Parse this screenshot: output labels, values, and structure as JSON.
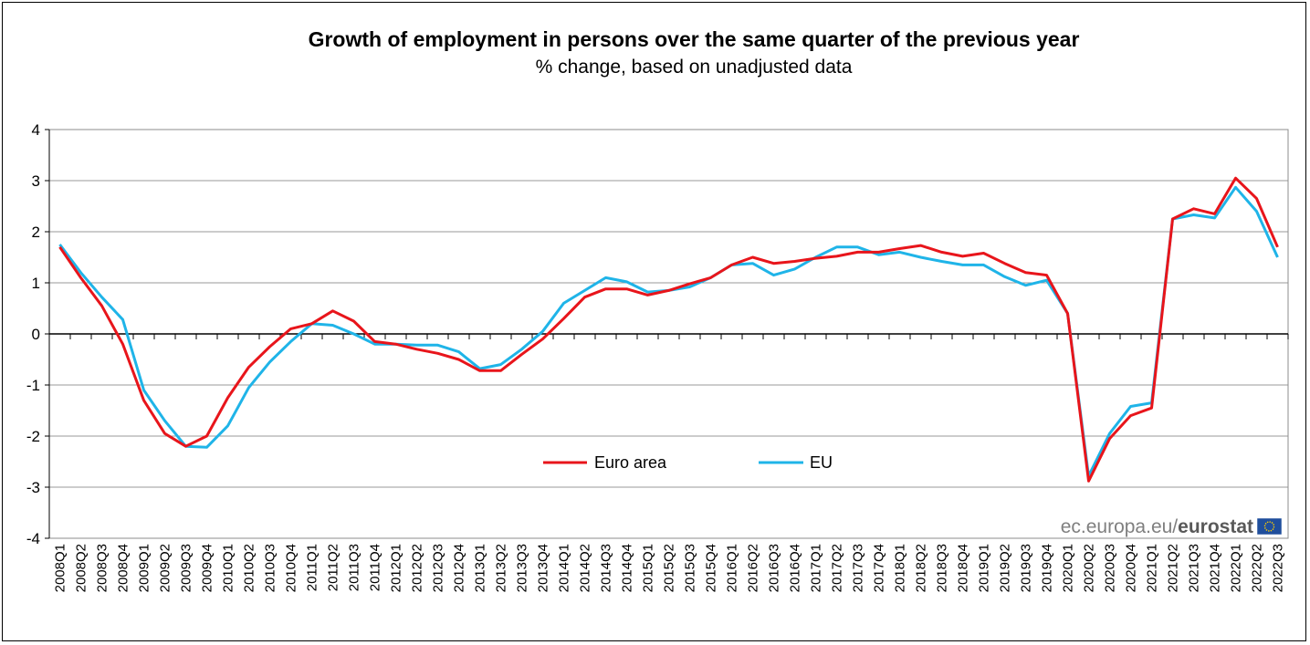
{
  "chart_data": {
    "type": "line",
    "title": "Growth of employment in persons  over the same quarter of the previous year",
    "subtitle": "% change, based on unadjusted data",
    "xlabel": "",
    "ylabel": "",
    "ylim": [
      -4,
      4
    ],
    "yticks": [
      "4",
      "3",
      "2",
      "1",
      "0",
      "-1",
      "-2",
      "-3",
      "-4"
    ],
    "categories": [
      "2008Q1",
      "2008Q2",
      "2008Q3",
      "2008Q4",
      "2009Q1",
      "2009Q2",
      "2009Q3",
      "2009Q4",
      "2010Q1",
      "2010Q2",
      "2010Q3",
      "2010Q4",
      "2011Q1",
      "2011Q2",
      "2011Q3",
      "2011Q4",
      "2012Q1",
      "2012Q2",
      "2012Q3",
      "2012Q4",
      "2013Q1",
      "2013Q2",
      "2013Q3",
      "2013Q4",
      "2014Q1",
      "2014Q2",
      "2014Q3",
      "2014Q4",
      "2015Q1",
      "2015Q2",
      "2015Q3",
      "2015Q4",
      "2016Q1",
      "2016Q2",
      "2016Q3",
      "2016Q4",
      "2017Q1",
      "2017Q2",
      "2017Q3",
      "2017Q4",
      "2018Q1",
      "2018Q2",
      "2018Q3",
      "2018Q4",
      "2019Q1",
      "2019Q2",
      "2019Q3",
      "2019Q4",
      "2020Q1",
      "2020Q2",
      "2020Q3",
      "2020Q4",
      "2021Q1",
      "2021Q2",
      "2021Q3",
      "2021Q4",
      "2022Q1",
      "2022Q2",
      "2022Q3"
    ],
    "series": [
      {
        "name": "Euro area",
        "color": "#e8151b",
        "values": [
          1.7,
          1.1,
          0.55,
          -0.2,
          -1.3,
          -1.95,
          -2.2,
          -2.0,
          -1.25,
          -0.65,
          -0.25,
          0.1,
          0.2,
          0.45,
          0.25,
          -0.15,
          -0.2,
          -0.3,
          -0.38,
          -0.5,
          -0.72,
          -0.72,
          -0.4,
          -0.1,
          0.3,
          0.72,
          0.88,
          0.88,
          0.76,
          0.85,
          0.98,
          1.1,
          1.35,
          1.5,
          1.38,
          1.42,
          1.48,
          1.52,
          1.6,
          1.6,
          1.67,
          1.73,
          1.6,
          1.52,
          1.58,
          1.38,
          1.2,
          1.15,
          0.4,
          -2.88,
          -2.05,
          -1.6,
          -1.45,
          2.25,
          2.45,
          2.35,
          3.05,
          2.65,
          1.7
        ]
      },
      {
        "name": "EU",
        "color": "#1fb4e8",
        "values": [
          1.75,
          1.2,
          0.72,
          0.28,
          -1.1,
          -1.7,
          -2.2,
          -2.22,
          -1.8,
          -1.05,
          -0.55,
          -0.15,
          0.2,
          0.17,
          0.0,
          -0.2,
          -0.2,
          -0.22,
          -0.22,
          -0.35,
          -0.68,
          -0.6,
          -0.3,
          0.05,
          0.6,
          0.85,
          1.1,
          1.02,
          0.82,
          0.85,
          0.92,
          1.1,
          1.35,
          1.38,
          1.15,
          1.27,
          1.5,
          1.7,
          1.7,
          1.55,
          1.6,
          1.5,
          1.42,
          1.35,
          1.35,
          1.12,
          0.95,
          1.05,
          0.4,
          -2.78,
          -1.95,
          -1.42,
          -1.35,
          2.25,
          2.33,
          2.27,
          2.87,
          2.4,
          1.5
        ]
      }
    ],
    "legend": [
      "Euro area",
      "EU"
    ],
    "legend_position": "center-bottom",
    "grid": true
  },
  "source": {
    "prefix": "ec.europa.eu/",
    "brand": "eurostat"
  },
  "flag_color": "#1f4e9c",
  "flag_star_color": "#ffcc00"
}
